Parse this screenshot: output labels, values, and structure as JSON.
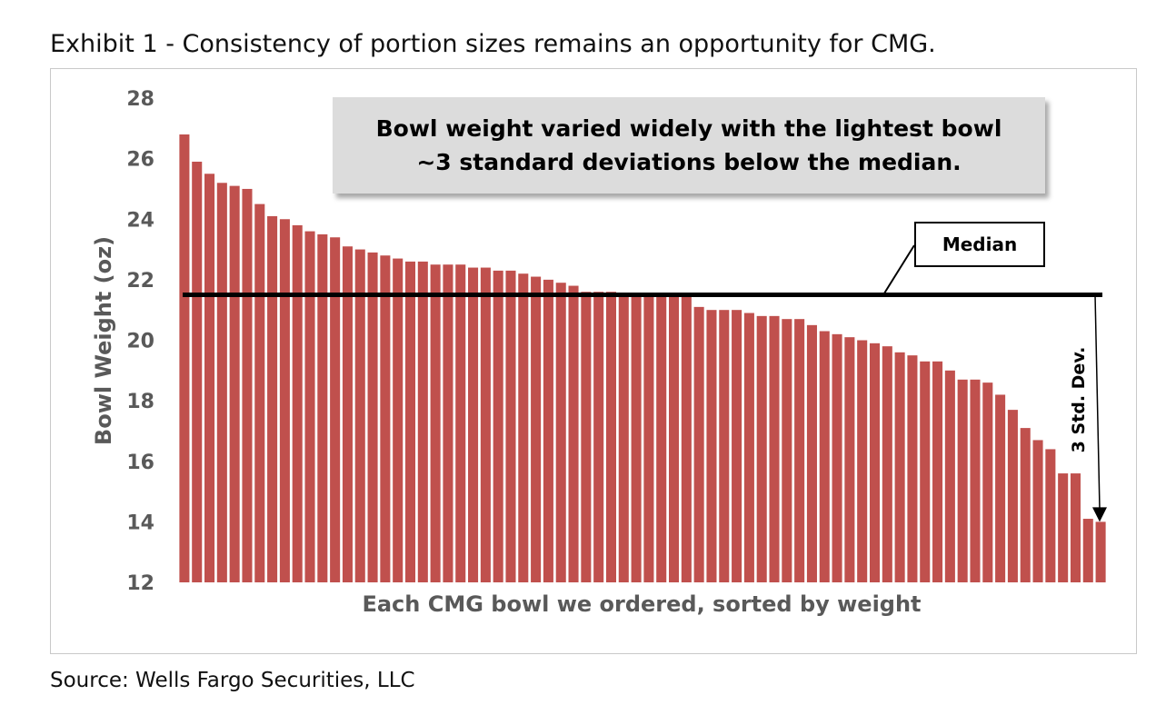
{
  "title": "Exhibit 1 - Consistency of portion sizes remains an opportunity for CMG.",
  "source": "Source: Wells Fargo Securities, LLC",
  "colors": {
    "bar": "#c0504d",
    "median_line": "#000000",
    "axis_text": "#595959",
    "callout_bg": "#dcdcdc"
  },
  "chart_data": {
    "type": "bar",
    "title": "",
    "xlabel": "Each CMG bowl we ordered, sorted by weight",
    "ylabel": "Bowl Weight (oz)",
    "ylim": [
      12,
      28
    ],
    "yticks": [
      "28",
      "26",
      "24",
      "22",
      "20",
      "18",
      "16",
      "14",
      "12"
    ],
    "grid": false,
    "values": [
      26.8,
      25.9,
      25.5,
      25.2,
      25.1,
      25.0,
      24.5,
      24.1,
      24.0,
      23.8,
      23.6,
      23.5,
      23.4,
      23.1,
      23.0,
      22.9,
      22.8,
      22.7,
      22.6,
      22.6,
      22.5,
      22.5,
      22.5,
      22.4,
      22.4,
      22.3,
      22.3,
      22.2,
      22.1,
      22.0,
      21.9,
      21.8,
      21.6,
      21.6,
      21.6,
      21.5,
      21.5,
      21.5,
      21.5,
      21.5,
      21.5,
      21.1,
      21.0,
      21.0,
      21.0,
      20.9,
      20.8,
      20.8,
      20.7,
      20.7,
      20.5,
      20.3,
      20.2,
      20.1,
      20.0,
      19.9,
      19.8,
      19.6,
      19.5,
      19.3,
      19.3,
      19.0,
      18.7,
      18.7,
      18.6,
      18.2,
      17.7,
      17.1,
      16.7,
      16.4,
      15.6,
      15.6,
      14.1,
      14.0
    ],
    "median": 21.5,
    "annotations": {
      "callout": "Bowl weight varied widely with the lightest bowl ~3 standard deviations below the median.",
      "median_label": "Median",
      "std_label": "3 Std. Dev."
    }
  }
}
